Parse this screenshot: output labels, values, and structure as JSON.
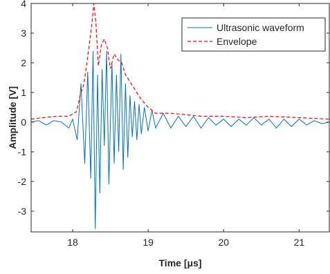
{
  "chart_data": {
    "type": "line",
    "title": "",
    "xlabel": "Time [μs]",
    "ylabel": "Amplitude [V]",
    "xlim": [
      17.45,
      21.4
    ],
    "ylim": [
      -3.7,
      4
    ],
    "xticks": [
      18,
      19,
      20,
      21
    ],
    "xtick_labels": [
      "18",
      "19",
      "20",
      "21"
    ],
    "yticks": [
      -3,
      -2,
      -1,
      0,
      1,
      2,
      3,
      4
    ],
    "ytick_labels": [
      "-3",
      "-2",
      "-1",
      "0",
      "1",
      "2",
      "3",
      "4"
    ],
    "grid": false,
    "legend_position": "top-right",
    "series": [
      {
        "name": "Ultrasonic waveform",
        "color": "#0072BD",
        "style": "solid",
        "x": [
          17.45,
          17.55,
          17.65,
          17.75,
          17.85,
          17.95,
          18.0,
          18.06,
          18.11,
          18.16,
          18.2,
          18.24,
          18.27,
          18.3,
          18.33,
          18.36,
          18.39,
          18.42,
          18.45,
          18.48,
          18.52,
          18.55,
          18.58,
          18.61,
          18.64,
          18.67,
          18.7,
          18.73,
          18.76,
          18.79,
          18.82,
          18.85,
          18.88,
          18.91,
          18.95,
          19.0,
          19.05,
          19.1,
          19.2,
          19.3,
          19.4,
          19.5,
          19.6,
          19.7,
          19.8,
          19.9,
          20.0,
          20.1,
          20.2,
          20.3,
          20.4,
          20.5,
          20.6,
          20.7,
          20.8,
          20.9,
          21.0,
          21.1,
          21.2,
          21.3,
          21.4
        ],
        "y": [
          0.0,
          0.05,
          -0.1,
          0.05,
          0.0,
          -0.2,
          0.1,
          -0.6,
          1.3,
          -1.4,
          1.7,
          -1.9,
          2.4,
          -3.6,
          1.6,
          -2.4,
          1.8,
          -0.8,
          2.4,
          -2.1,
          2.0,
          -1.4,
          1.6,
          -1.0,
          2.3,
          -1.6,
          1.3,
          -1.2,
          0.9,
          -0.5,
          0.7,
          -0.6,
          0.6,
          -0.4,
          0.5,
          -0.3,
          0.4,
          -0.2,
          0.3,
          -0.2,
          0.2,
          -0.15,
          0.2,
          -0.2,
          0.15,
          -0.1,
          0.1,
          -0.15,
          0.1,
          -0.1,
          0.15,
          -0.1,
          0.1,
          -0.2,
          0.1,
          -0.15,
          0.1,
          -0.1,
          0.05,
          -0.05,
          0.0
        ]
      },
      {
        "name": "Envelope",
        "color": "#FF0000",
        "style": "dashed",
        "x": [
          17.45,
          17.6,
          17.8,
          17.95,
          18.05,
          18.1,
          18.15,
          18.2,
          18.25,
          18.28,
          18.31,
          18.34,
          18.38,
          18.42,
          18.46,
          18.5,
          18.55,
          18.6,
          18.65,
          18.7,
          18.8,
          18.9,
          19.0,
          19.1,
          19.3,
          19.5,
          19.7,
          20.0,
          20.3,
          20.6,
          21.0,
          21.4
        ],
        "y": [
          0.1,
          0.15,
          0.2,
          0.2,
          0.35,
          0.9,
          1.3,
          2.2,
          3.2,
          4.0,
          3.3,
          1.9,
          2.6,
          2.8,
          2.5,
          1.8,
          2.3,
          2.1,
          2.0,
          1.6,
          1.2,
          0.8,
          0.5,
          0.3,
          0.3,
          0.25,
          0.2,
          0.2,
          0.15,
          0.2,
          0.15,
          0.1
        ]
      }
    ]
  }
}
